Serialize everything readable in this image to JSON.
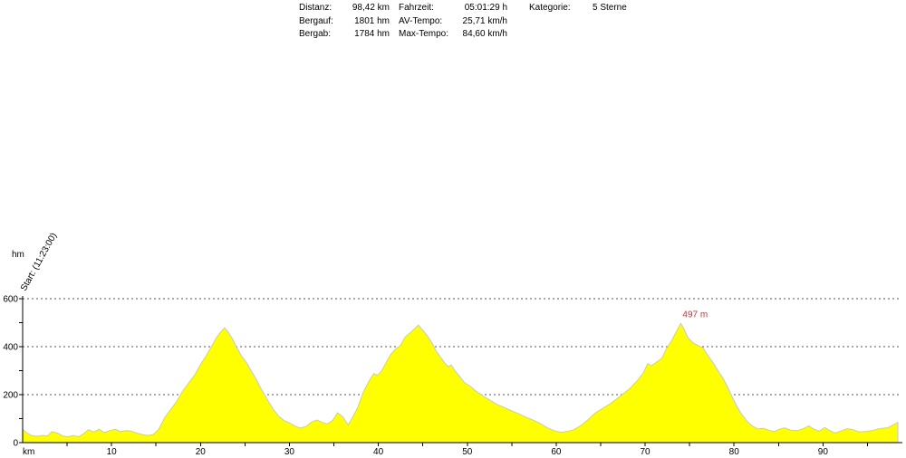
{
  "stats": {
    "columns": [
      {
        "rows": [
          {
            "label": "Distanz:",
            "value": "98,42 km"
          },
          {
            "label": "Bergauf:",
            "value": "1801 hm"
          },
          {
            "label": "Bergab:",
            "value": "1784 hm"
          }
        ]
      },
      {
        "rows": [
          {
            "label": "Fahrzeit:",
            "value": "05:01:29 h"
          },
          {
            "label": "AV-Tempo:",
            "value": "25,71 km/h"
          },
          {
            "label": "Max-Tempo:",
            "value": "84,60 km/h"
          }
        ]
      },
      {
        "rows": [
          {
            "label": "Kategorie:",
            "value": "5 Sterne"
          }
        ]
      }
    ]
  },
  "chart_data": {
    "type": "area",
    "title": "",
    "xlabel": "km",
    "ylabel": "hm",
    "start_label": "Start: (11:23:00)",
    "xlim": [
      0,
      98.42
    ],
    "ylim": [
      0,
      600
    ],
    "yticks": [
      0,
      200,
      400,
      600
    ],
    "ytick_minor_interval": 100,
    "xticks": [
      10,
      20,
      30,
      40,
      50,
      60,
      70,
      80,
      90
    ],
    "xtick_minor_interval": 5,
    "grid": "horizontal dashed at 200/400/600",
    "legend": "none",
    "colors": {
      "fill": "#ffff00",
      "outline": "#c8c8c8",
      "axis": "#000000",
      "grid": "#555555",
      "annotation": "#cc3333",
      "text": "#000000"
    },
    "peak_annotation": {
      "label": "497 m",
      "km": 74.0,
      "hm": 497
    },
    "profile_km_hm": [
      [
        0,
        55
      ],
      [
        0.4,
        42
      ],
      [
        1,
        30
      ],
      [
        1.6,
        26
      ],
      [
        2.2,
        30
      ],
      [
        2.8,
        28
      ],
      [
        3.3,
        46
      ],
      [
        3.9,
        40
      ],
      [
        4.5,
        28
      ],
      [
        5.1,
        24
      ],
      [
        5.7,
        30
      ],
      [
        6.3,
        24
      ],
      [
        6.9,
        38
      ],
      [
        7.4,
        54
      ],
      [
        8,
        44
      ],
      [
        8.6,
        56
      ],
      [
        9.2,
        42
      ],
      [
        9.8,
        50
      ],
      [
        10.4,
        56
      ],
      [
        11,
        46
      ],
      [
        11.6,
        50
      ],
      [
        12.2,
        48
      ],
      [
        12.8,
        40
      ],
      [
        13.4,
        34
      ],
      [
        14.1,
        30
      ],
      [
        14.7,
        34
      ],
      [
        15.3,
        55
      ],
      [
        16,
        105
      ],
      [
        16.6,
        135
      ],
      [
        17.3,
        170
      ],
      [
        18,
        215
      ],
      [
        18.7,
        250
      ],
      [
        19.4,
        285
      ],
      [
        20,
        325
      ],
      [
        20.6,
        360
      ],
      [
        21.2,
        398
      ],
      [
        21.8,
        438
      ],
      [
        22.3,
        462
      ],
      [
        22.7,
        478
      ],
      [
        23.1,
        462
      ],
      [
        23.6,
        432
      ],
      [
        24.1,
        395
      ],
      [
        24.6,
        362
      ],
      [
        25.2,
        332
      ],
      [
        25.7,
        300
      ],
      [
        26.2,
        268
      ],
      [
        26.7,
        232
      ],
      [
        27.2,
        200
      ],
      [
        27.7,
        168
      ],
      [
        28.2,
        138
      ],
      [
        28.8,
        110
      ],
      [
        29.4,
        92
      ],
      [
        30,
        82
      ],
      [
        30.6,
        70
      ],
      [
        31.2,
        60
      ],
      [
        31.9,
        68
      ],
      [
        32.5,
        86
      ],
      [
        33.1,
        94
      ],
      [
        33.7,
        84
      ],
      [
        34.3,
        78
      ],
      [
        34.9,
        94
      ],
      [
        35.4,
        124
      ],
      [
        36,
        108
      ],
      [
        36.6,
        74
      ],
      [
        37.1,
        104
      ],
      [
        37.7,
        148
      ],
      [
        38.3,
        210
      ],
      [
        39,
        260
      ],
      [
        39.5,
        288
      ],
      [
        39.9,
        280
      ],
      [
        40.4,
        300
      ],
      [
        40.9,
        335
      ],
      [
        41.4,
        368
      ],
      [
        42,
        392
      ],
      [
        42.5,
        405
      ],
      [
        43,
        440
      ],
      [
        43.6,
        458
      ],
      [
        44.1,
        475
      ],
      [
        44.5,
        490
      ],
      [
        45,
        468
      ],
      [
        45.5,
        446
      ],
      [
        46,
        418
      ],
      [
        46.5,
        382
      ],
      [
        47,
        356
      ],
      [
        47.5,
        330
      ],
      [
        47.9,
        316
      ],
      [
        48.2,
        324
      ],
      [
        48.6,
        300
      ],
      [
        49.1,
        278
      ],
      [
        49.7,
        250
      ],
      [
        50.3,
        236
      ],
      [
        51,
        214
      ],
      [
        51.8,
        194
      ],
      [
        52.6,
        176
      ],
      [
        53.4,
        158
      ],
      [
        54.2,
        146
      ],
      [
        55,
        132
      ],
      [
        55.8,
        120
      ],
      [
        56.6,
        106
      ],
      [
        57.4,
        94
      ],
      [
        58.2,
        80
      ],
      [
        59,
        62
      ],
      [
        59.8,
        50
      ],
      [
        60.5,
        43
      ],
      [
        61.2,
        46
      ],
      [
        62,
        54
      ],
      [
        62.8,
        72
      ],
      [
        63.6,
        96
      ],
      [
        64.4,
        124
      ],
      [
        65.2,
        142
      ],
      [
        66,
        160
      ],
      [
        66.8,
        182
      ],
      [
        67.6,
        205
      ],
      [
        68.4,
        230
      ],
      [
        69.2,
        262
      ],
      [
        69.8,
        290
      ],
      [
        70.3,
        330
      ],
      [
        70.7,
        320
      ],
      [
        71.3,
        336
      ],
      [
        71.9,
        352
      ],
      [
        72.4,
        392
      ],
      [
        73,
        426
      ],
      [
        73.5,
        462
      ],
      [
        74,
        497
      ],
      [
        74.4,
        472
      ],
      [
        74.8,
        438
      ],
      [
        75.4,
        416
      ],
      [
        76,
        404
      ],
      [
        76.5,
        396
      ],
      [
        77.1,
        362
      ],
      [
        77.7,
        330
      ],
      [
        78.3,
        294
      ],
      [
        78.8,
        266
      ],
      [
        79.3,
        230
      ],
      [
        79.8,
        190
      ],
      [
        80.3,
        152
      ],
      [
        80.9,
        116
      ],
      [
        81.5,
        88
      ],
      [
        82.1,
        68
      ],
      [
        82.7,
        57
      ],
      [
        83.3,
        60
      ],
      [
        83.9,
        52
      ],
      [
        84.5,
        46
      ],
      [
        85.1,
        56
      ],
      [
        85.7,
        62
      ],
      [
        86.4,
        52
      ],
      [
        87.1,
        50
      ],
      [
        87.8,
        58
      ],
      [
        88.4,
        70
      ],
      [
        89,
        56
      ],
      [
        89.6,
        48
      ],
      [
        90.2,
        63
      ],
      [
        90.8,
        50
      ],
      [
        91.4,
        40
      ],
      [
        92,
        48
      ],
      [
        92.7,
        58
      ],
      [
        93.4,
        54
      ],
      [
        94.1,
        44
      ],
      [
        94.8,
        46
      ],
      [
        95.5,
        50
      ],
      [
        96.1,
        56
      ],
      [
        96.7,
        60
      ],
      [
        97.3,
        62
      ],
      [
        97.9,
        74
      ],
      [
        98.42,
        84
      ]
    ]
  }
}
